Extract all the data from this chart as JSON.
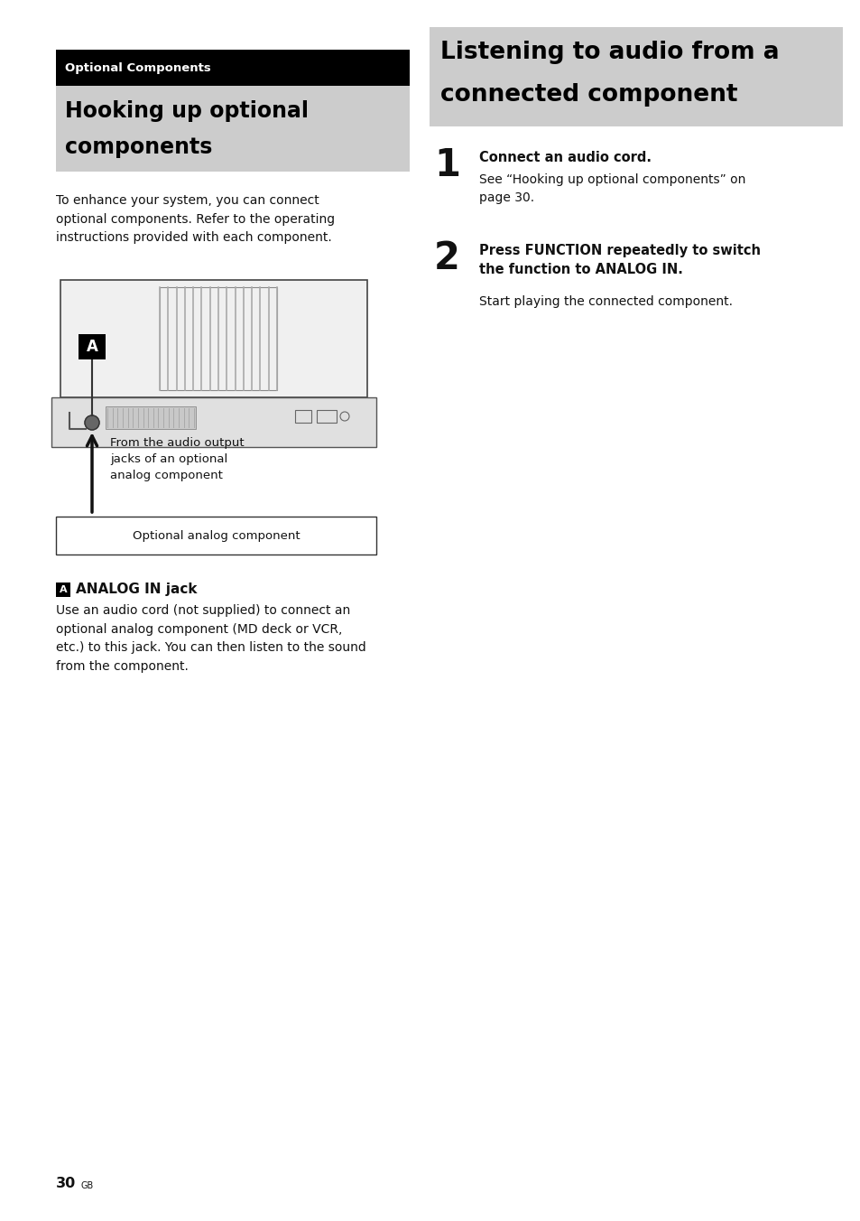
{
  "page_bg": "#ffffff",
  "header_black_bg": "#000000",
  "header_gray_bg": "#cccccc",
  "header_white": "#ffffff",
  "header_black": "#000000",
  "section_tag": "Optional Components",
  "left_title_line1": "Hooking up optional",
  "left_title_line2": "components",
  "right_title_line1": "Listening to audio from a",
  "right_title_line2": "connected component",
  "step1_num": "1",
  "step1_bold": "Connect an audio cord.",
  "step1_body": "See “Hooking up optional components” on\npage 30.",
  "step2_num": "2",
  "step2_bold": "Press FUNCTION repeatedly to switch\nthe function to ANALOG IN.",
  "step2_body": "Start playing the connected component.",
  "annotation_a_text": "ANALOG IN jack",
  "analog_in_body": "Use an audio cord (not supplied) to connect an\noptional analog component (MD deck or VCR,\netc.) to this jack. You can then listen to the sound\nfrom the component.",
  "diagram_label": "Optional analog component",
  "arrow_label": "From the audio output\njacks of an optional\nanalog component",
  "page_num": "30",
  "page_suffix": "GB"
}
